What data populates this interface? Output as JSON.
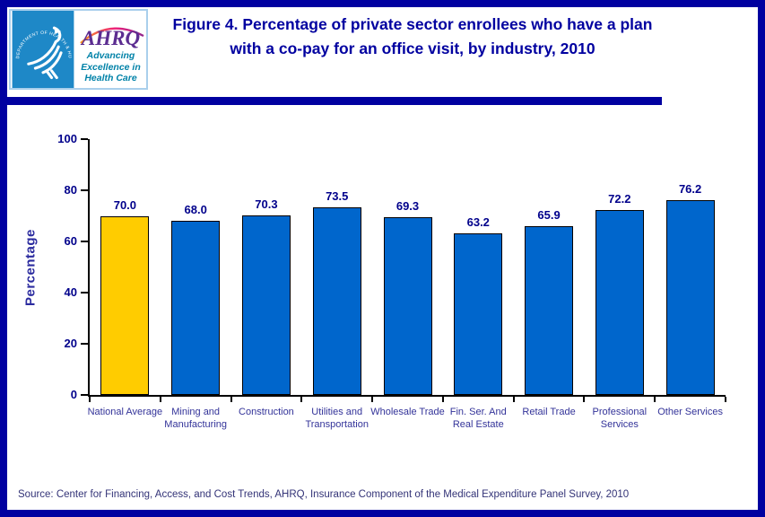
{
  "header": {
    "logo": {
      "seal_text": "DEPARTMENT OF HEALTH & HUMAN SERVICES - USA",
      "ahrq_wordmark": "AHRQ",
      "tagline_lines": [
        "Advancing",
        "Excellence in",
        "Health Care"
      ]
    },
    "title": "Figure 4. Percentage of private sector enrollees who have a plan with a co-pay for an office visit, by industry, 2010"
  },
  "chart_data": {
    "type": "bar",
    "title": "Figure 4. Percentage of private sector enrollees who have a plan with a co-pay for an office visit, by industry, 2010",
    "categories": [
      "National Average",
      "Mining and Manufacturing",
      "Construction",
      "Utilities and Transportation",
      "Wholesale Trade",
      "Fin. Ser. And Real Estate",
      "Retail Trade",
      "Professional Services",
      "Other Services"
    ],
    "values": [
      70.0,
      68.0,
      70.3,
      73.5,
      69.3,
      63.2,
      65.9,
      72.2,
      76.2
    ],
    "value_labels": [
      "70.0",
      "68.0",
      "70.3",
      "73.5",
      "69.3",
      "63.2",
      "65.9",
      "72.2",
      "76.2"
    ],
    "xlabel": "",
    "ylabel": "Percentage",
    "ylim": [
      0,
      100
    ],
    "yticks": [
      0,
      20,
      40,
      60,
      80,
      100
    ],
    "grid": false,
    "legend": null,
    "highlight_index": 0,
    "colors": {
      "highlight_bar": "#FFCC00",
      "default_bar": "#0066CC",
      "bar_outline": "#000000",
      "accent_navy": "#0000A0"
    }
  },
  "footer": {
    "source": "Source: Center for Financing, Access, and Cost Trends, AHRQ, Insurance Component of the Medical Expenditure Panel Survey, 2010"
  }
}
